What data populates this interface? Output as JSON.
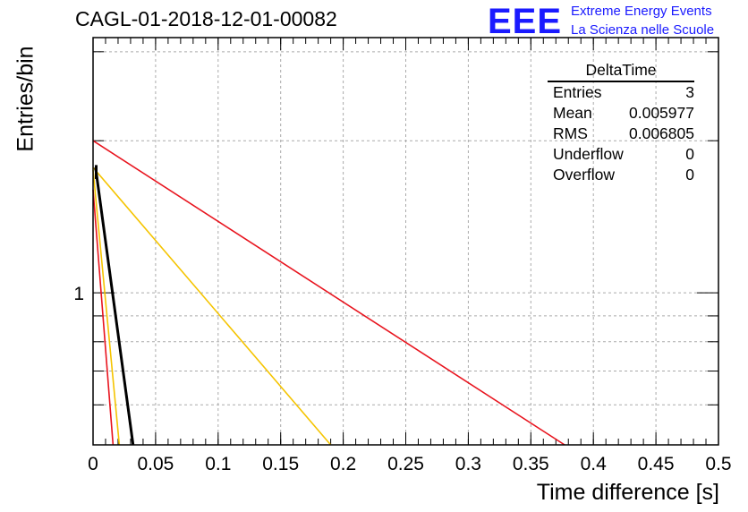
{
  "header": {
    "run_title": "CAGL-01-2018-12-01-00082",
    "logo_text": "EEE",
    "logo_line1": "Extreme Energy Events",
    "logo_line2": "La Scienza nelle Scuole"
  },
  "stats_box": {
    "name": "DeltaTime",
    "rows": [
      {
        "label": "Entries",
        "value": "3"
      },
      {
        "label": "Mean",
        "value": "0.005977"
      },
      {
        "label": "RMS",
        "value": "0.006805"
      },
      {
        "label": "Underflow",
        "value": "0"
      },
      {
        "label": "Overflow",
        "value": "0"
      }
    ]
  },
  "colors": {
    "red": "#e8141e",
    "yellow": "#f5c400",
    "black": "#000000",
    "grid": "#aaaaaa",
    "logo_blue": "#1a1aff"
  },
  "chart_data": {
    "type": "line",
    "title": "CAGL-01-2018-12-01-00082",
    "xlabel": "Time difference [s]",
    "ylabel": "Entries/bin",
    "x_ticks": [
      "0",
      "0.05",
      "0.1",
      "0.15",
      "0.2",
      "0.25",
      "0.3",
      "0.35",
      "0.4",
      "0.45",
      "0.5"
    ],
    "y_ticks": [
      "1"
    ],
    "xlim": [
      0,
      0.5
    ],
    "ylim": [
      0.5,
      3.2
    ],
    "y_log": true,
    "grid": true,
    "series": [
      {
        "color": "#e8141e",
        "points": [
          [
            0,
            2.0
          ],
          [
            0.377,
            0.5
          ]
        ]
      },
      {
        "color": "#f5c400",
        "points": [
          [
            0,
            1.77
          ],
          [
            0.19,
            0.5
          ]
        ]
      },
      {
        "color": "#000000",
        "points": [
          [
            0.002,
            1.77
          ],
          [
            0.032,
            0.5
          ]
        ]
      },
      {
        "color": "#e8141e",
        "points": [
          [
            0,
            1.6
          ],
          [
            0.016,
            0.5
          ]
        ]
      },
      {
        "color": "#f5c400",
        "points": [
          [
            0,
            1.75
          ],
          [
            0.021,
            0.5
          ]
        ]
      },
      {
        "color": "#000000",
        "points": [
          [
            0.0025,
            1.79
          ],
          [
            0.0025,
            1.68
          ]
        ]
      }
    ]
  },
  "stats_note": ""
}
